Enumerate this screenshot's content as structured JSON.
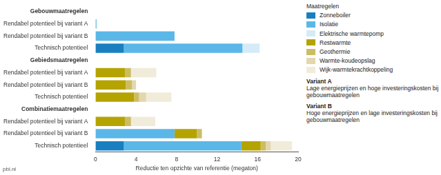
{
  "chart_data": {
    "type": "bar",
    "orientation": "horizontal",
    "stacked": true,
    "grid": false,
    "legend": "right",
    "legend_title": "Maatregelen",
    "x_label": "Reductie ten opzichte van referentie (megaton)",
    "annotations": [
      "pbl.nl"
    ],
    "notes": [
      {
        "title": "Variant A",
        "text": "Lage energieprijzen en hoge investeringskosten bij gebouwmaatregelen"
      },
      {
        "title": "Variant B",
        "text": "Hoge energieprijzen en lage investeringskosten bij gebouwmaatregelen"
      }
    ],
    "categories": [
      "Gebouwmaatregelen",
      "Rendabel potentieel bij variant A",
      "Rendabel potentieel bij variant B",
      "Technisch potentieel",
      "Gebiedsmaatregelen",
      "Rendabel potentieel bij variant A",
      "Rendabel potentieel bij variant B",
      "Technisch potentieel",
      "Combinatiemaatregelen",
      "Rendabel potentieel bij variant A",
      "Rendabel potentieel bij variant B",
      "Technisch potentieel"
    ],
    "xlim": [
      0,
      20
    ],
    "xticks": [
      0,
      4,
      8,
      12,
      16,
      20
    ],
    "series": [
      {
        "name": "Zonneboiler",
        "color": "#1a7fc1",
        "values": [
          null,
          0,
          0,
          2.8,
          null,
          0,
          0,
          0,
          null,
          0,
          0,
          2.8
        ]
      },
      {
        "name": "Isolatie",
        "color": "#5ab7e8",
        "values": [
          null,
          0.1,
          7.8,
          11.7,
          null,
          0,
          0,
          0,
          null,
          0,
          7.8,
          11.6
        ]
      },
      {
        "name": "Elektrische warmtepomp",
        "color": "#d5ebf7",
        "values": [
          null,
          0,
          0,
          1.7,
          null,
          0,
          0,
          0,
          null,
          0,
          0,
          0
        ]
      },
      {
        "name": "Restwarmte",
        "color": "#b5a300",
        "values": [
          null,
          0,
          0,
          0,
          null,
          2.9,
          3.0,
          3.8,
          null,
          2.9,
          2.2,
          1.9
        ]
      },
      {
        "name": "Geothermie",
        "color": "#cdbd62",
        "values": [
          null,
          0,
          0,
          0,
          null,
          0.6,
          0.6,
          0.5,
          null,
          0.6,
          0.5,
          0.5
        ]
      },
      {
        "name": "Warmte-koudeopslag",
        "color": "#e3d7ae",
        "values": [
          null,
          0,
          0,
          0,
          null,
          0,
          0.4,
          0.7,
          null,
          0,
          0,
          0.5
        ]
      },
      {
        "name": "Wijk-warmtekrachtkoppeling",
        "color": "#f1ecda",
        "values": [
          null,
          0,
          0,
          0,
          null,
          2.5,
          0,
          2.5,
          null,
          2.4,
          0,
          2.1
        ]
      }
    ]
  }
}
